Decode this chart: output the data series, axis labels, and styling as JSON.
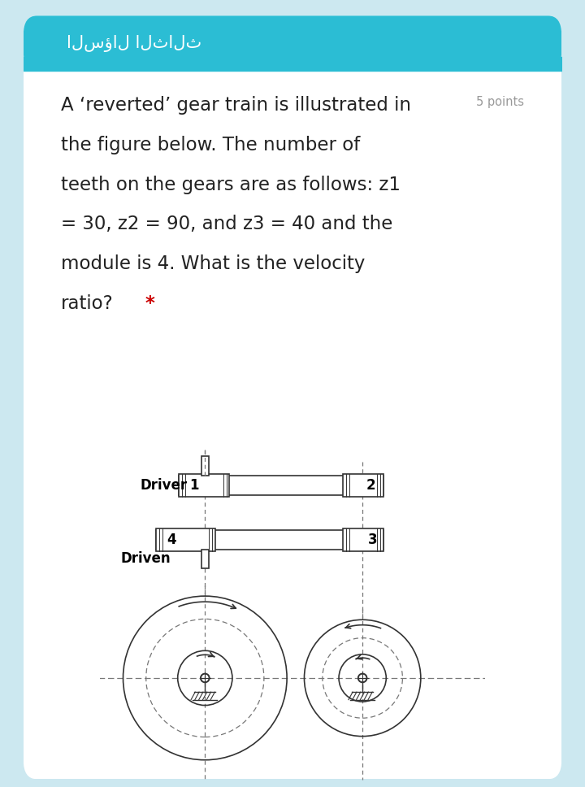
{
  "bg_outer": "#cce8f0",
  "bg_card": "#ffffff",
  "header_bg": "#2bbdd4",
  "header_text": "السؤال الثالث",
  "header_text_color": "#ffffff",
  "question_lines": [
    "A ‘reverted’ gear train is illustrated in",
    "the figure below. The number of",
    "teeth on the gears are as follows: z1",
    "= 30, z2 = 90, and z3 = 40 and the",
    "module is 4. What is the velocity",
    "ratio?"
  ],
  "points_text": "5 points",
  "main_text_color": "#222222",
  "points_color": "#999999",
  "star_color": "#cc0000",
  "lc": "#333333",
  "dc": "#777777",
  "lw": 1.2
}
